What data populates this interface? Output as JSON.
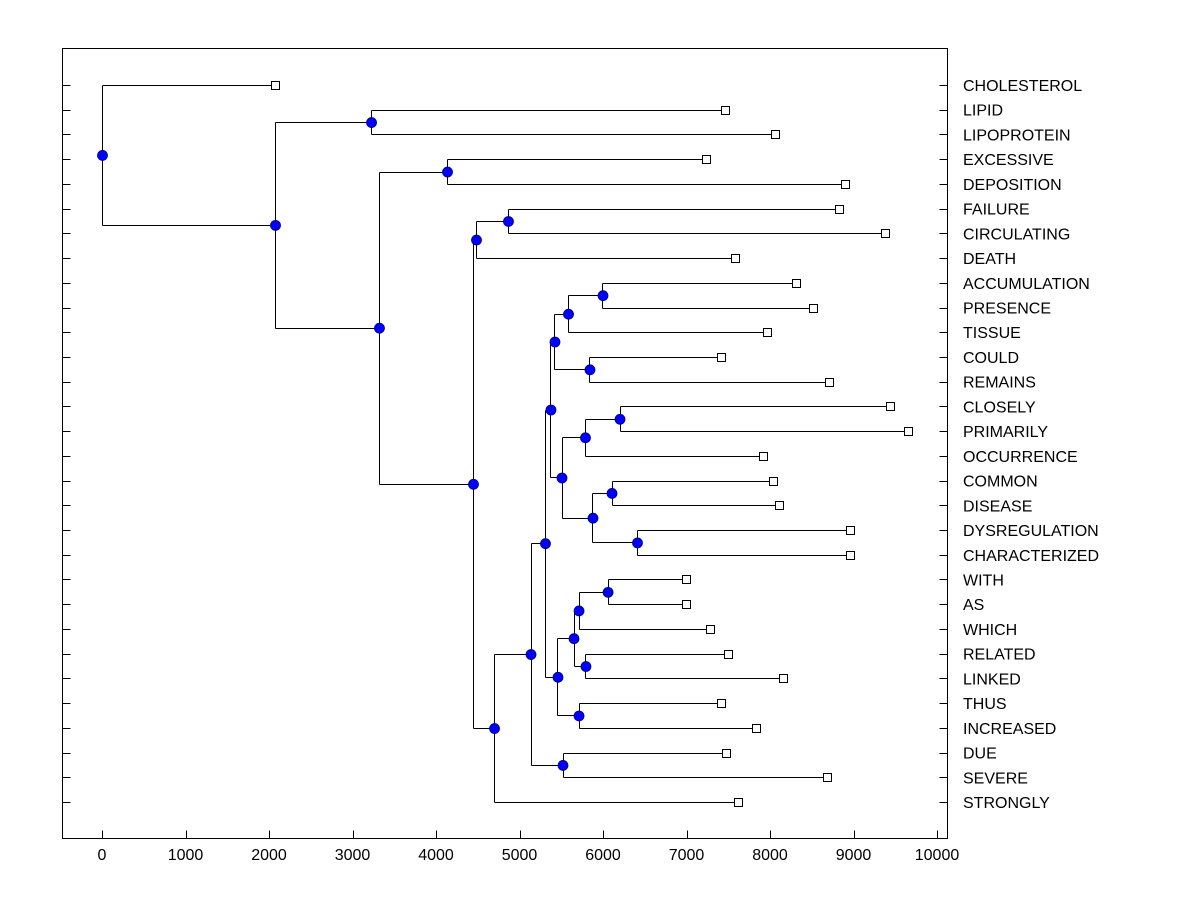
{
  "chart_data": {
    "type": "dendrogram",
    "title": "",
    "xlabel": "",
    "ylabel": "",
    "xlim": [
      -500,
      10000
    ],
    "xticks": [
      0,
      1000,
      2000,
      3000,
      4000,
      5000,
      6000,
      7000,
      8000,
      9000,
      10000
    ],
    "grid": false,
    "node_color": "#0000ff",
    "leaf_marker": "open-square",
    "leaves": [
      {
        "label": "CHOLESTEROL",
        "x": 2072
      },
      {
        "label": "LIPID",
        "x": 7461
      },
      {
        "label": "LIPOPROTEIN",
        "x": 8060
      },
      {
        "label": "EXCESSIVE",
        "x": 7234
      },
      {
        "label": "DEPOSITION",
        "x": 8898
      },
      {
        "label": "FAILURE",
        "x": 8826
      },
      {
        "label": "CIRCULATING",
        "x": 9377
      },
      {
        "label": "DEATH",
        "x": 7581
      },
      {
        "label": "ACCUMULATION",
        "x": 8317
      },
      {
        "label": "PRESENCE",
        "x": 8515
      },
      {
        "label": "TISSUE",
        "x": 7964
      },
      {
        "label": "COULD",
        "x": 7413
      },
      {
        "label": "REMAINS",
        "x": 8705
      },
      {
        "label": "CLOSELY",
        "x": 9443
      },
      {
        "label": "PRIMARILY",
        "x": 9653
      },
      {
        "label": "OCCURRENCE",
        "x": 7916
      },
      {
        "label": "COMMON",
        "x": 8036
      },
      {
        "label": "DISEASE",
        "x": 8108
      },
      {
        "label": "DYSREGULATION",
        "x": 8958
      },
      {
        "label": "CHARACTERIZED",
        "x": 8958
      },
      {
        "label": "WITH",
        "x": 6994
      },
      {
        "label": "AS",
        "x": 6994
      },
      {
        "label": "WHICH",
        "x": 7281
      },
      {
        "label": "RELATED",
        "x": 7497
      },
      {
        "label": "LINKED",
        "x": 8156
      },
      {
        "label": "THUS",
        "x": 7413
      },
      {
        "label": "INCREASED",
        "x": 7832
      },
      {
        "label": "DUE",
        "x": 7473
      },
      {
        "label": "SEVERE",
        "x": 8683
      },
      {
        "label": "STRONGLY",
        "x": 7617
      }
    ],
    "tree": {
      "x": 0,
      "children": [
        {
          "leaf": 0
        },
        {
          "x": 2072,
          "children": [
            {
              "x": 3222,
              "children": [
                {
                  "leaf": 1
                },
                {
                  "leaf": 2
                }
              ]
            },
            {
              "x": 3317,
              "children": [
                {
                  "x": 4132,
                  "children": [
                    {
                      "leaf": 3
                    },
                    {
                      "leaf": 4
                    }
                  ]
                },
                {
                  "x": 4443,
                  "children": [
                    {
                      "x": 4479,
                      "children": [
                        {
                          "x": 4862,
                          "children": [
                            {
                              "leaf": 5
                            },
                            {
                              "leaf": 6
                            }
                          ]
                        },
                        {
                          "leaf": 7
                        }
                      ]
                    },
                    {
                      "x": 4695,
                      "children": [
                        {
                          "x": 5132,
                          "children": [
                            {
                              "x": 5305,
                              "children": [
                                {
                                  "x": 5371,
                                  "children": [
                                    {
                                      "x": 5419,
                                      "children": [
                                        {
                                          "x": 5581,
                                          "children": [
                                            {
                                              "x": 5994,
                                              "children": [
                                                {
                                                  "leaf": 8
                                                },
                                                {
                                                  "leaf": 9
                                                }
                                              ]
                                            },
                                            {
                                              "leaf": 10
                                            }
                                          ]
                                        },
                                        {
                                          "x": 5838,
                                          "children": [
                                            {
                                              "leaf": 11
                                            },
                                            {
                                              "leaf": 12
                                            }
                                          ]
                                        }
                                      ]
                                    },
                                    {
                                      "x": 5503,
                                      "children": [
                                        {
                                          "x": 5784,
                                          "children": [
                                            {
                                              "x": 6198,
                                              "children": [
                                                {
                                                  "leaf": 13
                                                },
                                                {
                                                  "leaf": 14
                                                }
                                              ]
                                            },
                                            {
                                              "leaf": 15
                                            }
                                          ]
                                        },
                                        {
                                          "x": 5874,
                                          "children": [
                                            {
                                              "x": 6102,
                                              "children": [
                                                {
                                                  "leaf": 16
                                                },
                                                {
                                                  "leaf": 17
                                                }
                                              ]
                                            },
                                            {
                                              "x": 6407,
                                              "children": [
                                                {
                                                  "leaf": 18
                                                },
                                                {
                                                  "leaf": 19
                                                }
                                              ]
                                            }
                                          ]
                                        }
                                      ]
                                    }
                                  ]
                                },
                                {
                                  "x": 5455,
                                  "children": [
                                    {
                                      "x": 5647,
                                      "children": [
                                        {
                                          "x": 5707,
                                          "children": [
                                            {
                                              "x": 6055,
                                              "children": [
                                                {
                                                  "leaf": 20
                                                },
                                                {
                                                  "leaf": 21
                                                }
                                              ]
                                            },
                                            {
                                              "leaf": 22
                                            }
                                          ]
                                        },
                                        {
                                          "x": 5790,
                                          "children": [
                                            {
                                              "leaf": 23
                                            },
                                            {
                                              "leaf": 24
                                            }
                                          ]
                                        }
                                      ]
                                    },
                                    {
                                      "x": 5707,
                                      "children": [
                                        {
                                          "leaf": 25
                                        },
                                        {
                                          "leaf": 26
                                        }
                                      ]
                                    }
                                  ]
                                }
                              ]
                            },
                            {
                              "x": 5515,
                              "children": [
                                {
                                  "leaf": 27
                                },
                                {
                                  "leaf": 28
                                }
                              ]
                            }
                          ]
                        },
                        {
                          "leaf": 29
                        }
                      ]
                    }
                  ]
                }
              ]
            }
          ]
        }
      ]
    }
  }
}
